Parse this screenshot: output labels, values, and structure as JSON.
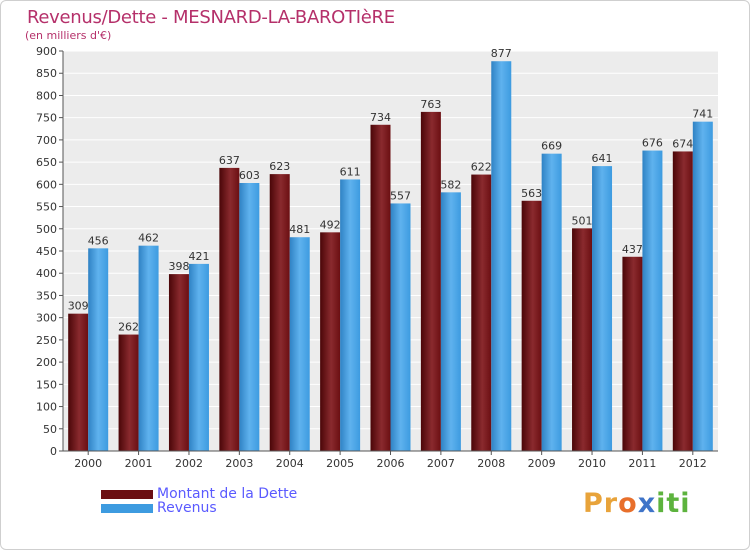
{
  "title": "Revenus/Dette - MESNARD-LA-BAROTIèRE",
  "subtitle": "(en milliers d'€)",
  "colors": {
    "dette": "#6b0f12",
    "revenus": "#3d9be0",
    "title": "#b5306a",
    "legend_text": "#5a5aff",
    "grid": "#ffffff",
    "plot_bg": "#ececec"
  },
  "legend": {
    "dette": "Montant de la Dette",
    "revenus": "Revenus"
  },
  "logo": {
    "letters": [
      "P",
      "r",
      "o",
      "x",
      "i",
      "t",
      "i"
    ],
    "colors": [
      "#e8a33a",
      "#e8a33a",
      "#e86f2b",
      "#3f74c8",
      "#5db33e",
      "#5db33e",
      "#5db33e"
    ]
  },
  "chart_data": {
    "type": "bar",
    "categories": [
      "2000",
      "2001",
      "2002",
      "2003",
      "2004",
      "2005",
      "2006",
      "2007",
      "2008",
      "2009",
      "2010",
      "2011",
      "2012"
    ],
    "series": [
      {
        "name": "Montant de la Dette",
        "values": [
          309,
          262,
          398,
          637,
          623,
          492,
          734,
          763,
          622,
          563,
          501,
          437,
          674
        ]
      },
      {
        "name": "Revenus",
        "values": [
          456,
          462,
          421,
          603,
          481,
          611,
          557,
          582,
          877,
          669,
          641,
          676,
          741
        ]
      }
    ],
    "ylim": [
      0,
      900
    ],
    "ytick_step": 50,
    "grid": true,
    "legend_position": "bottom-left"
  }
}
